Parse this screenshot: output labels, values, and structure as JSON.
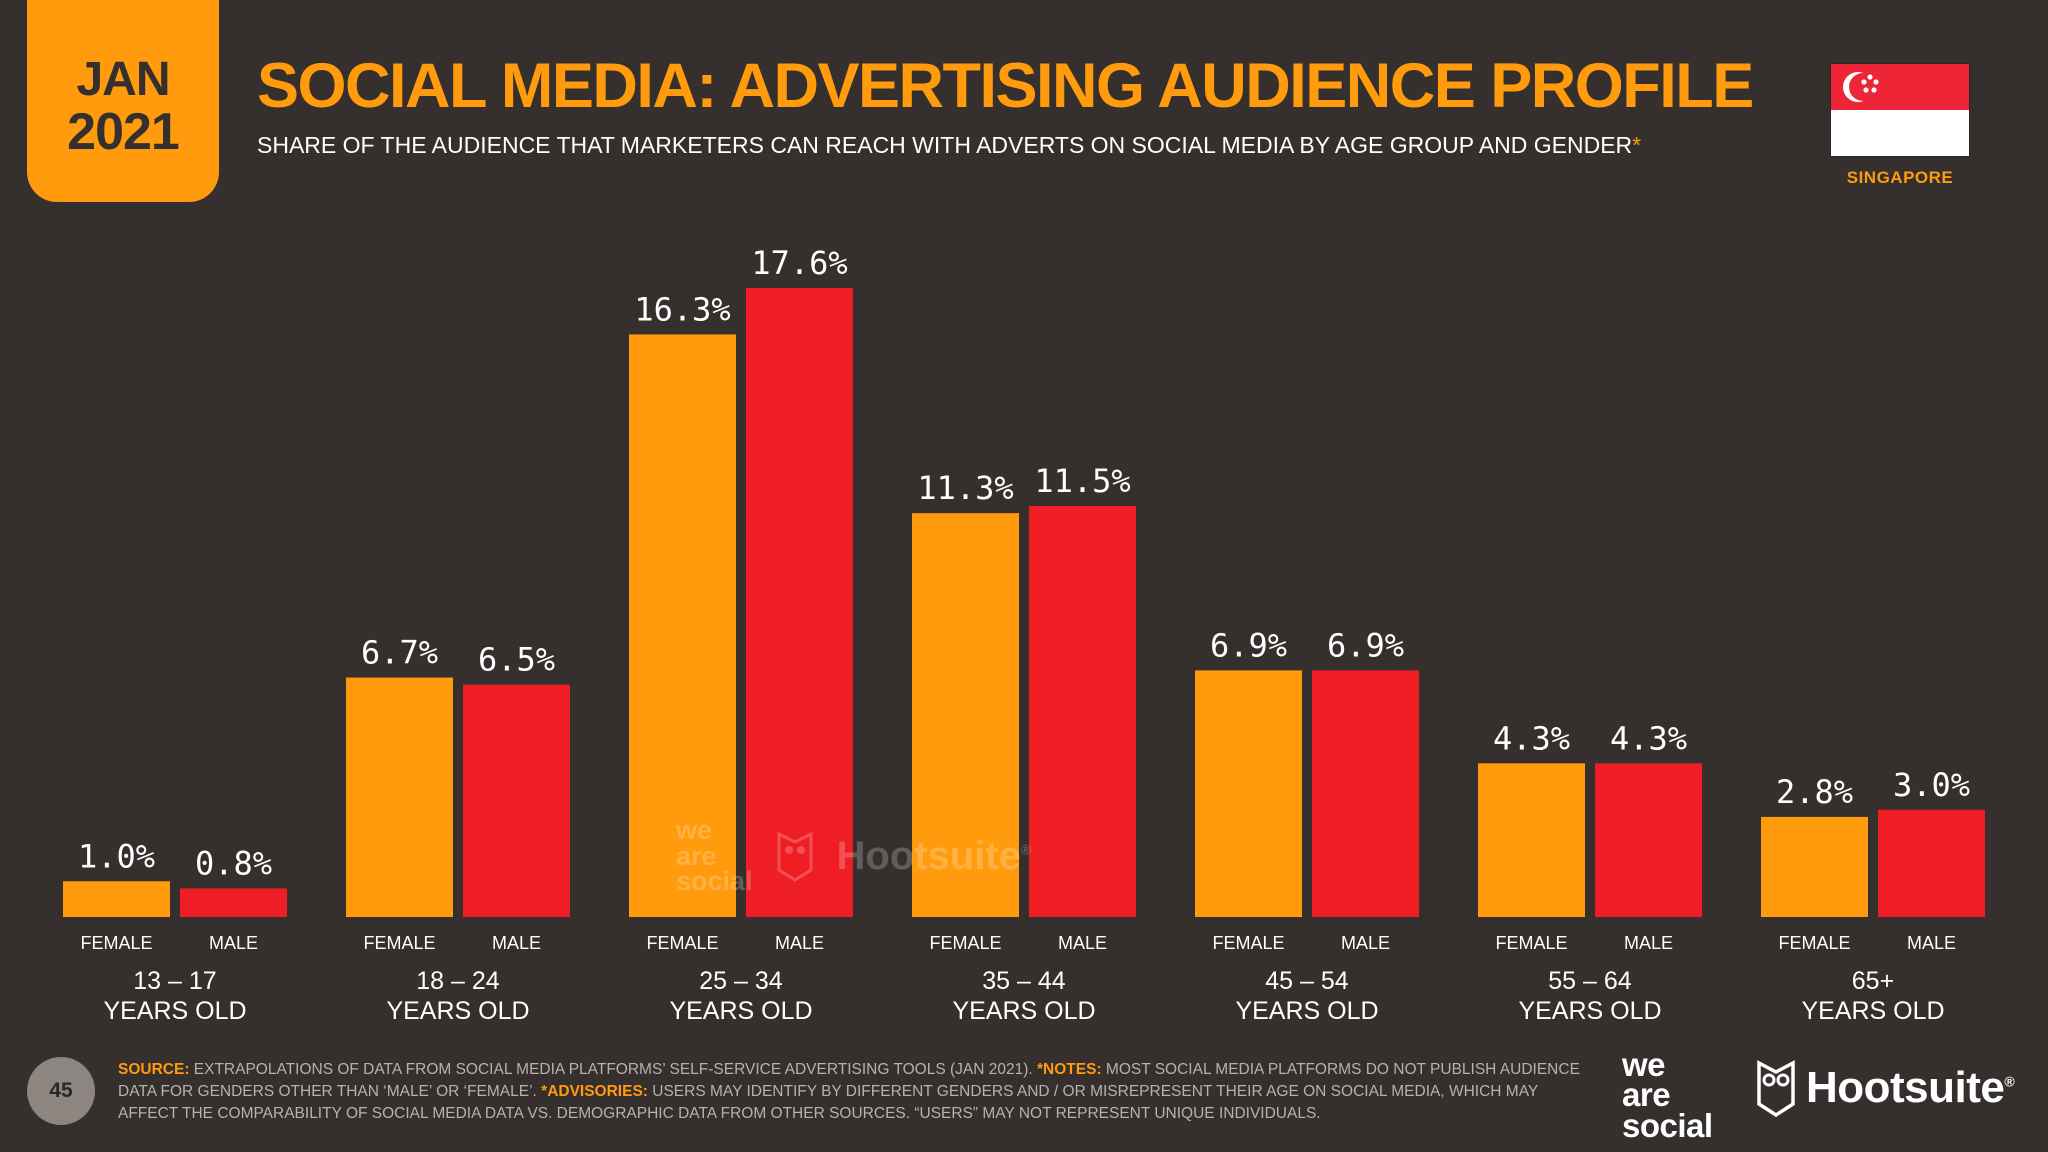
{
  "badge": {
    "month": "JAN",
    "year": "2021"
  },
  "header": {
    "title": "SOCIAL MEDIA: ADVERTISING AUDIENCE PROFILE",
    "subtitle": "SHARE OF THE AUDIENCE THAT MARKETERS CAN REACH WITH ADVERTS ON SOCIAL MEDIA BY AGE GROUP AND GENDER",
    "subtitle_mark": "*"
  },
  "country": "SINGAPORE",
  "colors": {
    "female": "#ff9b0d",
    "male": "#ee1e24",
    "background": "#352f2d",
    "accent": "#ff9b0d"
  },
  "chart_data": {
    "type": "bar",
    "title": "SOCIAL MEDIA: ADVERTISING AUDIENCE PROFILE",
    "categories": [
      "13 – 17",
      "18 – 24",
      "25 – 34",
      "35 – 44",
      "45 – 54",
      "55 – 64",
      "65+"
    ],
    "category_suffix": "YEARS OLD",
    "series": [
      {
        "name": "FEMALE",
        "values": [
          1.0,
          6.7,
          16.3,
          11.3,
          6.9,
          4.3,
          2.8
        ]
      },
      {
        "name": "MALE",
        "values": [
          0.8,
          6.5,
          17.6,
          11.5,
          6.9,
          4.3,
          3.0
        ]
      }
    ],
    "value_suffix": "%",
    "ylim": [
      0,
      17.6
    ],
    "xlabel": "",
    "ylabel": "",
    "grid": false,
    "legend": "none"
  },
  "watermark": {
    "was_line1": "we",
    "was_line2": "are",
    "was_line3": "social",
    "hootsuite": "Hootsuite",
    "hootsuite_mark": "®"
  },
  "footer": {
    "page": "45",
    "source_label": "SOURCE:",
    "source_text": " EXTRAPOLATIONS OF DATA FROM SOCIAL MEDIA PLATFORMS’ SELF-SERVICE ADVERTISING TOOLS (JAN 2021). ",
    "notes_label": "*NOTES:",
    "notes_text": " MOST SOCIAL MEDIA PLATFORMS DO NOT PUBLISH AUDIENCE DATA FOR GENDERS OTHER THAN ‘MALE’ OR ‘FEMALE’. ",
    "advisories_label": "*ADVISORIES:",
    "advisories_text": " USERS MAY IDENTIFY BY DIFFERENT GENDERS AND / OR MISREPRESENT THEIR AGE ON SOCIAL MEDIA, WHICH MAY AFFECT THE COMPARABILITY OF SOCIAL MEDIA DATA vs. DEMOGRAPHIC DATA FROM OTHER SOURCES. “USERS” MAY NOT REPRESENT UNIQUE INDIVIDUALS."
  },
  "logos": {
    "was_line1": "we",
    "was_line2": "are",
    "was_line3": "social",
    "hootsuite": "Hootsuite",
    "hootsuite_mark": "®"
  }
}
